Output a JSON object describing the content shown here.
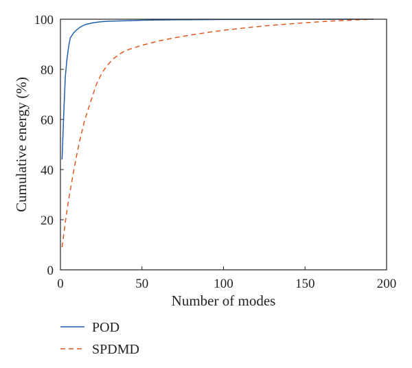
{
  "chart_data": {
    "type": "line",
    "xlabel": "Number of modes",
    "ylabel": "Cumulative energy (%)",
    "xlim": [
      0,
      200
    ],
    "ylim": [
      0,
      100
    ],
    "xticks": [
      0,
      50,
      100,
      150,
      200
    ],
    "yticks": [
      0,
      20,
      40,
      60,
      80,
      100
    ],
    "grid": false,
    "legend_position": "below plot, left",
    "series": [
      {
        "name": "POD",
        "color": "#1f5fad",
        "style": "solid",
        "x": [
          1,
          2,
          3,
          4,
          5,
          6,
          8,
          10,
          12,
          15,
          20,
          25,
          30,
          40,
          50,
          60,
          80,
          100,
          120,
          150,
          180,
          192
        ],
        "y": [
          44,
          62,
          77,
          84,
          89,
          92.5,
          94.5,
          95.8,
          96.8,
          97.8,
          98.6,
          99.0,
          99.2,
          99.4,
          99.6,
          99.7,
          99.8,
          99.9,
          99.9,
          100,
          100,
          100
        ]
      },
      {
        "name": "SPDMD",
        "color": "#e0581c",
        "style": "dashed",
        "x": [
          1,
          3,
          5,
          8,
          10,
          12,
          15,
          18,
          20,
          22,
          25,
          28,
          32,
          36,
          40,
          45,
          50,
          60,
          70,
          80,
          90,
          100,
          110,
          120,
          130,
          140,
          150,
          160,
          170,
          180,
          192
        ],
        "y": [
          9,
          19,
          28,
          39,
          46,
          52,
          60,
          66,
          70,
          74,
          78,
          81,
          84,
          86,
          87.5,
          88.6,
          89.6,
          91.3,
          92.6,
          93.7,
          94.7,
          95.6,
          96.3,
          97.0,
          97.6,
          98.1,
          98.6,
          99.0,
          99.4,
          99.7,
          100
        ]
      }
    ]
  }
}
